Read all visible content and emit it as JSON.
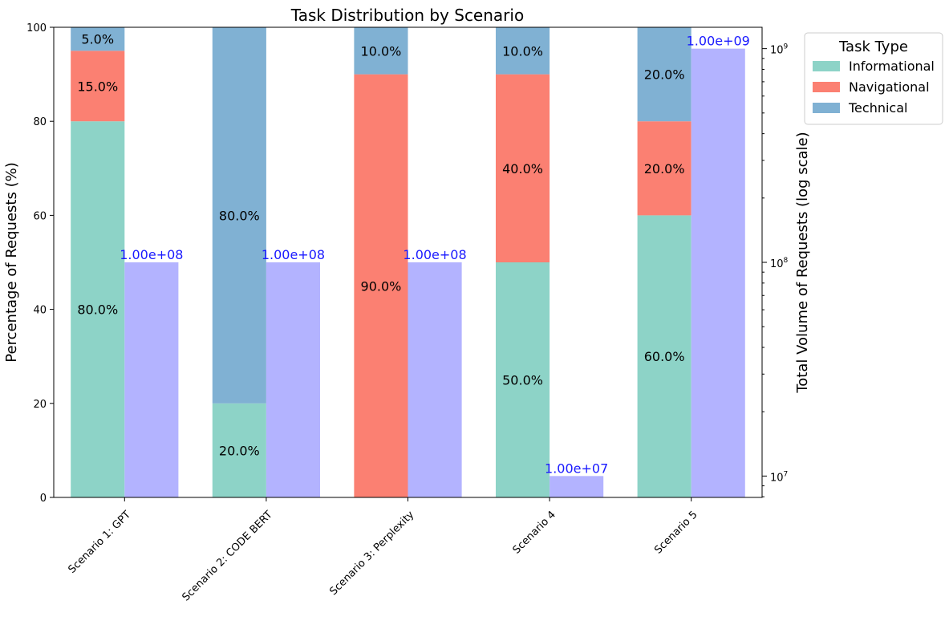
{
  "chart_data": {
    "type": "bar",
    "title": "Task Distribution by Scenario",
    "ylabel": "Percentage of Requests (%)",
    "y2label": "Total Volume of Requests (log scale)",
    "ylim": [
      0,
      100
    ],
    "yticks": [
      0,
      20,
      40,
      60,
      80,
      100
    ],
    "y2lim_log10": [
      6.9,
      9.1
    ],
    "y2ticks": [
      {
        "exp": 7,
        "label": "10",
        "sup": "7"
      },
      {
        "exp": 8,
        "label": "10",
        "sup": "8"
      },
      {
        "exp": 9,
        "label": "10",
        "sup": "9"
      }
    ],
    "categories": [
      "Scenario 1: GPT",
      "Scenario 2: CODE BERT",
      "Scenario 3: Perplexity",
      "Scenario 4",
      "Scenario 5"
    ],
    "series": [
      {
        "name": "Informational",
        "color": "#8dd3c7",
        "values": [
          80,
          20,
          0,
          50,
          60
        ],
        "labels": [
          "80.0%",
          "20.0%",
          "",
          "50.0%",
          "60.0%"
        ]
      },
      {
        "name": "Navigational",
        "color": "#fb8072",
        "values": [
          15,
          0,
          90,
          40,
          20
        ],
        "labels": [
          "15.0%",
          "",
          "90.0%",
          "40.0%",
          "20.0%"
        ]
      },
      {
        "name": "Technical",
        "color": "#80b1d3",
        "values": [
          5,
          80,
          10,
          10,
          20
        ],
        "labels": [
          "5.0%",
          "80.0%",
          "10.0%",
          "10.0%",
          "20.0%"
        ]
      }
    ],
    "volume": {
      "name": "Total Volume",
      "color": "#b3b3ff",
      "values": [
        100000000,
        100000000,
        100000000,
        10000000,
        1000000000
      ],
      "labels": [
        "1.00e+08",
        "1.00e+08",
        "1.00e+08",
        "1.00e+07",
        "1.00e+09"
      ]
    },
    "legend": {
      "title": "Task Type",
      "position": "outside-top-right"
    }
  }
}
